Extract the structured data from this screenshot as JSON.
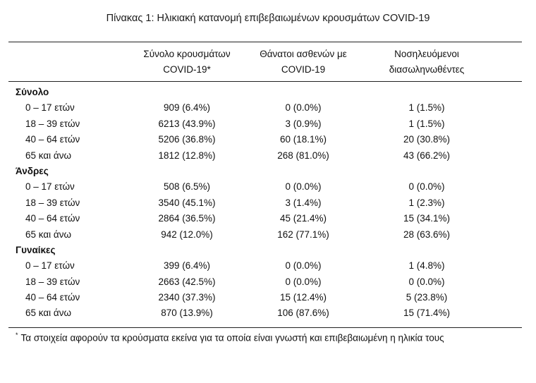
{
  "title": "Πίνακας 1: Ηλικιακή κατανομή επιβεβαιωμένων κρουσμάτων COVID-19",
  "columns": [
    [
      "Σύνολο κρουσμάτων",
      "COVID-19*"
    ],
    [
      "Θάνατοι ασθενών με",
      "COVID-19"
    ],
    [
      "Νοσηλευόμενοι",
      "διασωληνωθέντες"
    ]
  ],
  "groups": [
    {
      "name": "Σύνολο",
      "rows": [
        {
          "age": "0 – 17 ετών",
          "cases": "909 (6.4%)",
          "deaths": "0 (0.0%)",
          "intubated": "1 (1.5%)"
        },
        {
          "age": "18 – 39 ετών",
          "cases": "6213 (43.9%)",
          "deaths": "3 (0.9%)",
          "intubated": "1 (1.5%)"
        },
        {
          "age": "40 – 64 ετών",
          "cases": "5206 (36.8%)",
          "deaths": "60 (18.1%)",
          "intubated": "20 (30.8%)"
        },
        {
          "age": "65 και άνω",
          "cases": "1812 (12.8%)",
          "deaths": "268 (81.0%)",
          "intubated": "43 (66.2%)"
        }
      ]
    },
    {
      "name": "Άνδρες",
      "rows": [
        {
          "age": "0 – 17 ετών",
          "cases": "508 (6.5%)",
          "deaths": "0 (0.0%)",
          "intubated": "0 (0.0%)"
        },
        {
          "age": "18 – 39 ετών",
          "cases": "3540 (45.1%)",
          "deaths": "3 (1.4%)",
          "intubated": "1 (2.3%)"
        },
        {
          "age": "40 – 64 ετών",
          "cases": "2864 (36.5%)",
          "deaths": "45 (21.4%)",
          "intubated": "15 (34.1%)"
        },
        {
          "age": "65 και άνω",
          "cases": "942 (12.0%)",
          "deaths": "162 (77.1%)",
          "intubated": "28 (63.6%)"
        }
      ]
    },
    {
      "name": "Γυναίκες",
      "rows": [
        {
          "age": "0 – 17 ετών",
          "cases": "399 (6.4%)",
          "deaths": "0 (0.0%)",
          "intubated": "1 (4.8%)"
        },
        {
          "age": "18 – 39 ετών",
          "cases": "2663 (42.5%)",
          "deaths": "0 (0.0%)",
          "intubated": "0 (0.0%)"
        },
        {
          "age": "40 – 64 ετών",
          "cases": "2340 (37.3%)",
          "deaths": "15 (12.4%)",
          "intubated": "5 (23.8%)"
        },
        {
          "age": "65 και άνω",
          "cases": "870 (13.9%)",
          "deaths": "106 (87.6%)",
          "intubated": "15 (71.4%)"
        }
      ]
    }
  ],
  "footnote": {
    "mark": "*",
    "text": "Τα στοιχεία αφορούν τα κρούσματα εκείνα για τα οποία είναι γνωστή και επιβεβαιωμένη η ηλικία τους"
  }
}
